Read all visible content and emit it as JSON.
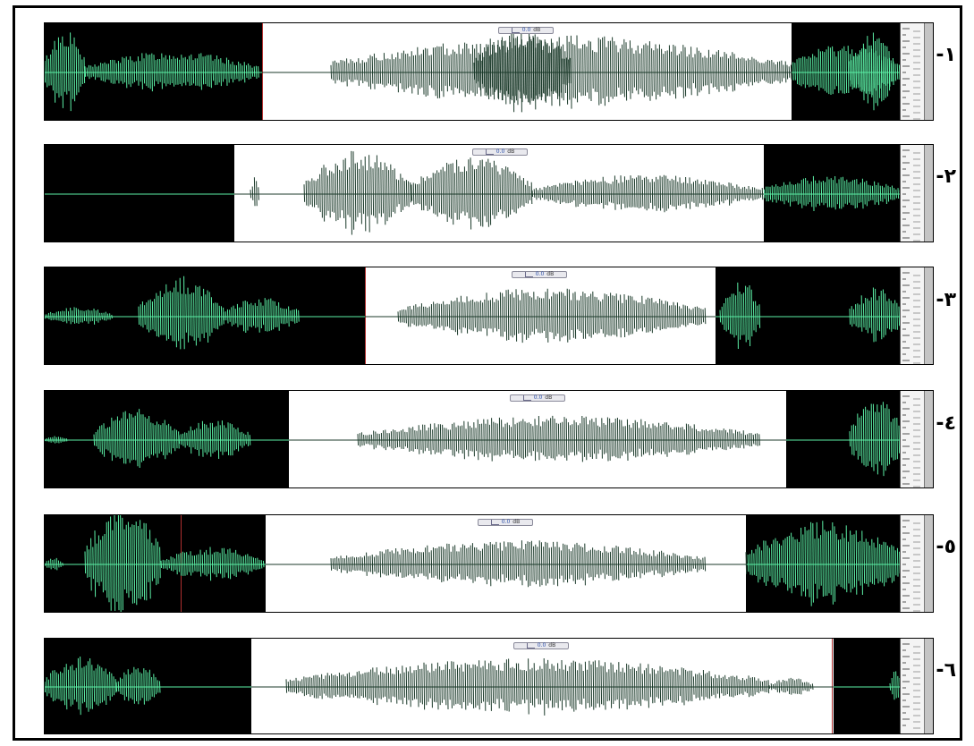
{
  "items": [
    {
      "label": "١-",
      "toolbar": {
        "value": "0.0",
        "unit": "dB"
      }
    },
    {
      "label": "٢-",
      "toolbar": {
        "value": "0.0",
        "unit": "dB"
      }
    },
    {
      "label": "٣-",
      "toolbar": {
        "value": "0.0",
        "unit": "dB"
      }
    },
    {
      "label": "٤-",
      "toolbar": {
        "value": "0.0",
        "unit": "dB"
      }
    },
    {
      "label": "٥-",
      "toolbar": {
        "value": "0.0",
        "unit": "dB"
      }
    },
    {
      "label": "٦-",
      "toolbar": {
        "value": "0.0",
        "unit": "dB"
      }
    }
  ],
  "colors": {
    "waveform_unselected": "#5cf0a6",
    "waveform_selected": "#1b3a2a",
    "background_unselected": "#000000",
    "background_selected": "#ffffff",
    "ruler": "#c4c4c4"
  }
}
